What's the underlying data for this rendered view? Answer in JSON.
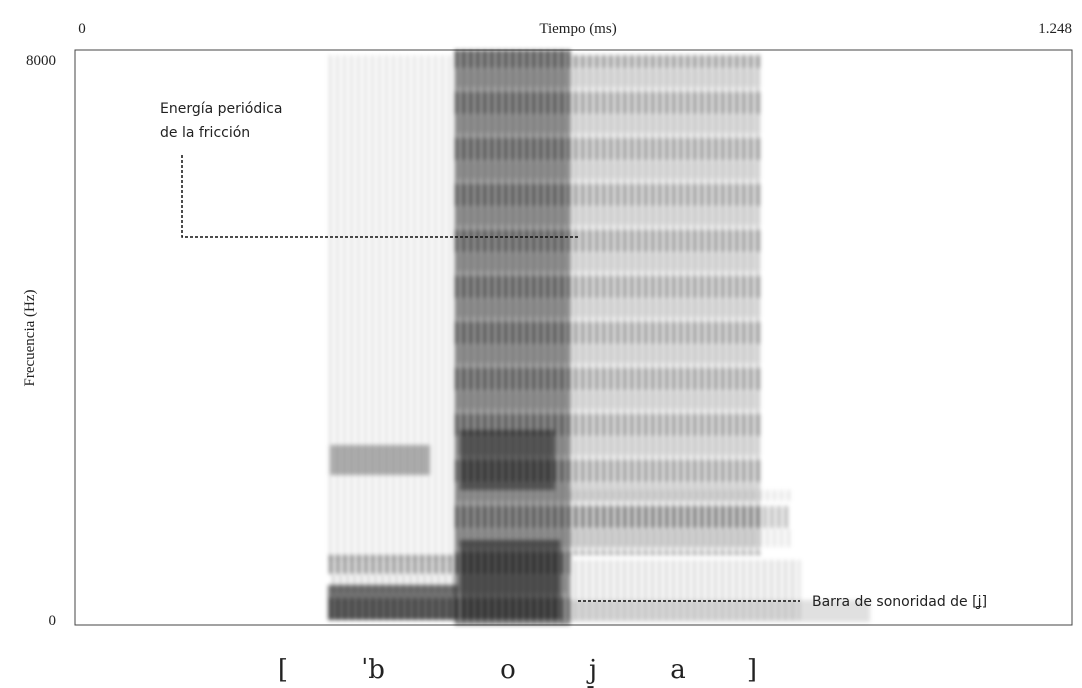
{
  "chart_data": {
    "type": "spectrogram",
    "xlabel": "Tiempo (ms)",
    "ylabel": "Frecuencia (Hz)",
    "xlim": [
      0,
      1.248
    ],
    "xticks": [
      0,
      1.248
    ],
    "ylim": [
      0,
      8000
    ],
    "yticks": [
      0,
      8000
    ],
    "annotations": [
      [
        "Energía periódica",
        "de la fricción"
      ],
      [
        "Barra de sonoridad de [ʝ]"
      ]
    ],
    "transcription": [
      "[",
      "ˈb",
      "o",
      "j̞",
      "a",
      "]"
    ]
  }
}
